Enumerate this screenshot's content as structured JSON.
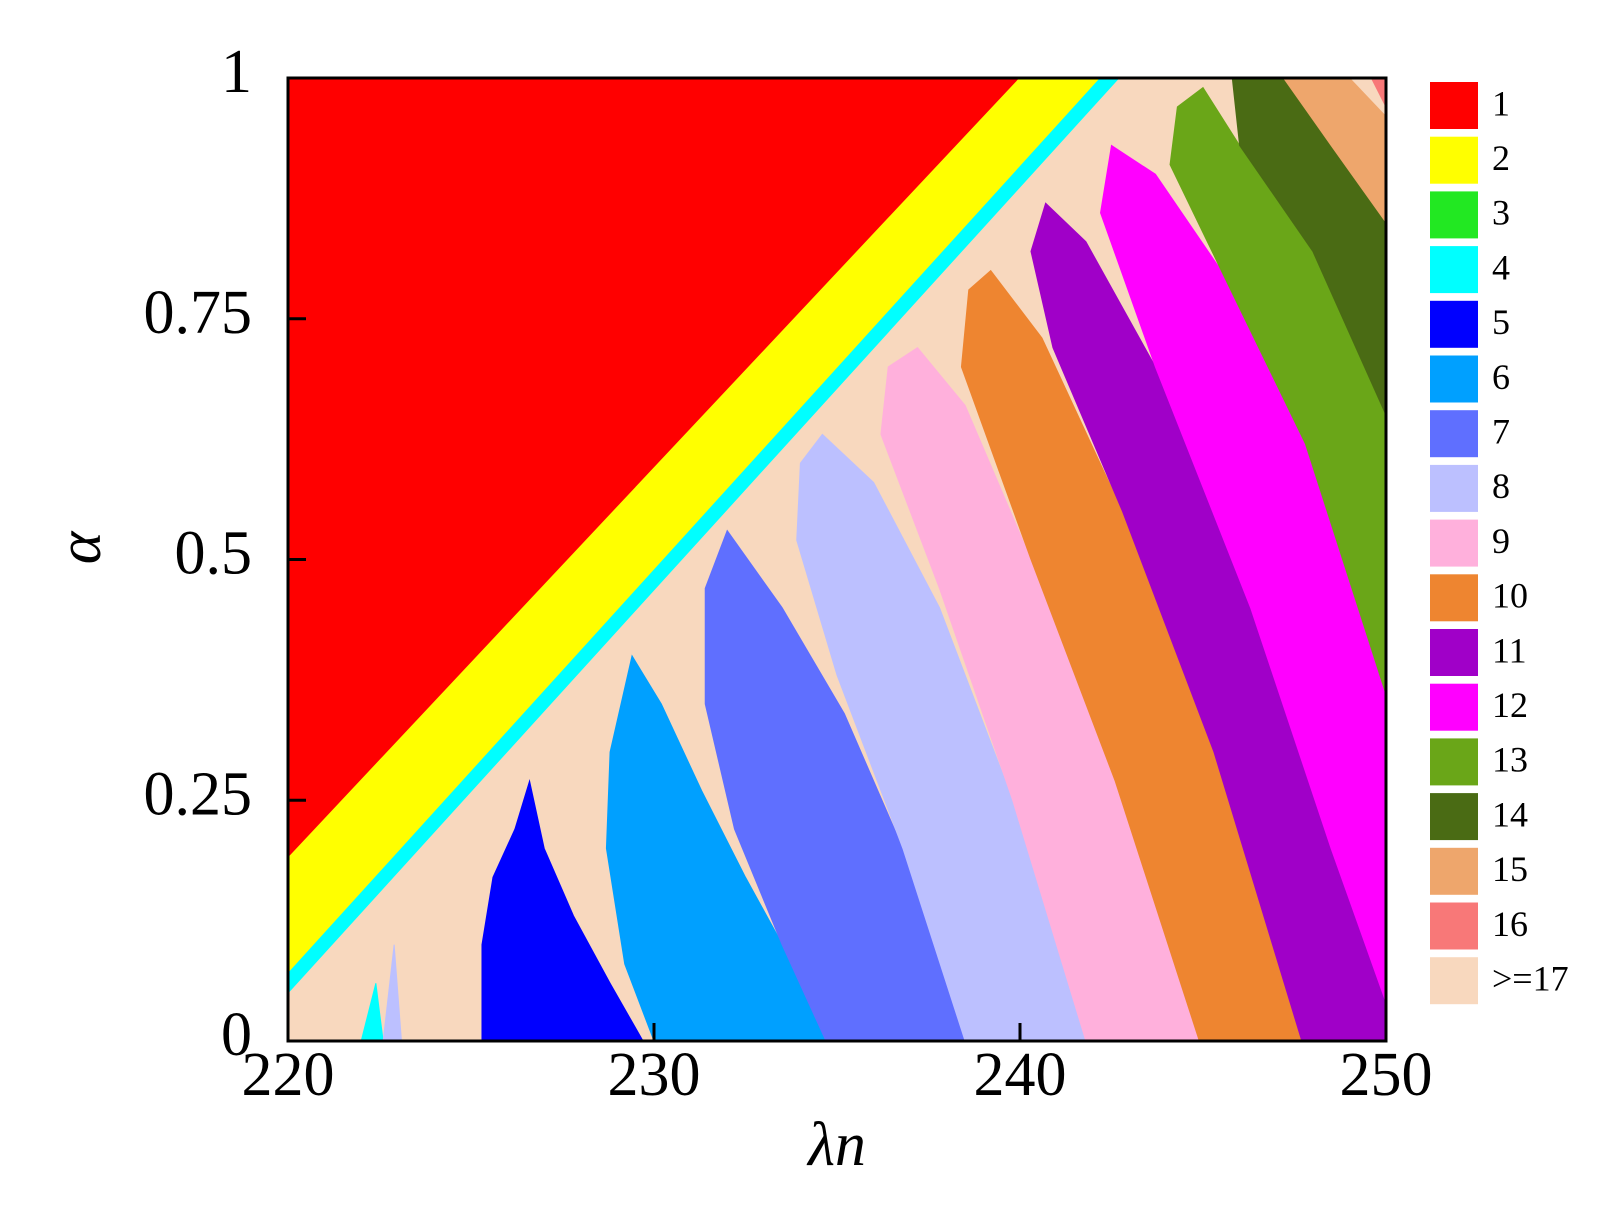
{
  "chart_data": {
    "type": "region",
    "xlabel": "λn",
    "ylabel": "α",
    "xlim": [
      220,
      250
    ],
    "ylim": [
      0,
      1
    ],
    "xticks": [
      220,
      230,
      240,
      250
    ],
    "yticks": [
      0,
      0.25,
      0.5,
      0.75,
      1
    ],
    "series": [
      {
        "name": ">=17",
        "color": "#f8d8be",
        "polygons": [
          [
            [
              220,
              0
            ],
            [
              250,
              0
            ],
            [
              250,
              1
            ],
            [
              220,
              1
            ]
          ]
        ]
      },
      {
        "name": "1",
        "color": "#ff0000",
        "polygons": [
          [
            [
              220,
              0.19
            ],
            [
              220,
              1
            ],
            [
              240,
              1
            ]
          ]
        ]
      },
      {
        "name": "2",
        "color": "#ffff00",
        "polygons": [
          [
            [
              220,
              0.19
            ],
            [
              240,
              1
            ],
            [
              242.2,
              1
            ],
            [
              220,
              0.07
            ]
          ]
        ]
      },
      {
        "name": "3",
        "color": "#22e822",
        "polygons": []
      },
      {
        "name": "4",
        "color": "#00ffff",
        "polygons": [
          [
            [
              220,
              0.07
            ],
            [
              242.2,
              1
            ],
            [
              242.7,
              1
            ],
            [
              220,
              0.05
            ]
          ],
          [
            [
              222,
              0
            ],
            [
              222.4,
              0.06
            ],
            [
              222.6,
              0
            ]
          ]
        ]
      },
      {
        "name": "5",
        "color": "#0000ff",
        "polygons": [
          [
            [
              225.3,
              0
            ],
            [
              225.3,
              0.1
            ],
            [
              225.6,
              0.17
            ],
            [
              226.2,
              0.22
            ],
            [
              226.6,
              0.27
            ],
            [
              227,
              0.2
            ],
            [
              227.8,
              0.13
            ],
            [
              228.8,
              0.06
            ],
            [
              229.7,
              0
            ]
          ]
        ]
      },
      {
        "name": "6",
        "color": "#00a0ff",
        "polygons": [
          [
            [
              230,
              0
            ],
            [
              229.2,
              0.08
            ],
            [
              228.7,
              0.2
            ],
            [
              228.8,
              0.3
            ],
            [
              229.4,
              0.4
            ],
            [
              230.2,
              0.35
            ],
            [
              231.3,
              0.26
            ],
            [
              232.5,
              0.17
            ],
            [
              233.8,
              0.08
            ],
            [
              234.7,
              0
            ]
          ]
        ]
      },
      {
        "name": "7",
        "color": "#5f6fff",
        "polygons": [
          [
            [
              234.7,
              0
            ],
            [
              233.5,
              0.1
            ],
            [
              232.2,
              0.22
            ],
            [
              231.4,
              0.35
            ],
            [
              231.4,
              0.47
            ],
            [
              232,
              0.53
            ],
            [
              233.5,
              0.45
            ],
            [
              235.2,
              0.34
            ],
            [
              236.8,
              0.2
            ],
            [
              238.5,
              0
            ]
          ]
        ]
      },
      {
        "name": "8",
        "color": "#bcc0ff",
        "polygons": [
          [
            [
              238.5,
              0
            ],
            [
              236.8,
              0.2
            ],
            [
              235,
              0.38
            ],
            [
              233.9,
              0.52
            ],
            [
              234,
              0.6
            ],
            [
              234.6,
              0.63
            ],
            [
              236,
              0.58
            ],
            [
              237.8,
              0.45
            ],
            [
              239.8,
              0.25
            ],
            [
              241.8,
              0
            ]
          ],
          [
            [
              222.6,
              0
            ],
            [
              222.9,
              0.1
            ],
            [
              223.1,
              0
            ]
          ]
        ]
      },
      {
        "name": "9",
        "color": "#ffb0dc",
        "polygons": [
          [
            [
              241.8,
              0
            ],
            [
              239.8,
              0.25
            ],
            [
              237.8,
              0.47
            ],
            [
              236.2,
              0.63
            ],
            [
              236.4,
              0.7
            ],
            [
              237.2,
              0.72
            ],
            [
              238.5,
              0.66
            ],
            [
              240.3,
              0.5
            ],
            [
              242.6,
              0.27
            ],
            [
              244.9,
              0
            ]
          ]
        ]
      },
      {
        "name": "10",
        "color": "#ee8530",
        "polygons": [
          [
            [
              244.9,
              0
            ],
            [
              242.6,
              0.27
            ],
            [
              240.3,
              0.5
            ],
            [
              238.4,
              0.7
            ],
            [
              238.6,
              0.78
            ],
            [
              239.2,
              0.8
            ],
            [
              240.6,
              0.73
            ],
            [
              242.8,
              0.55
            ],
            [
              245.3,
              0.3
            ],
            [
              247.7,
              0
            ]
          ]
        ]
      },
      {
        "name": "11",
        "color": "#a000c8",
        "polygons": [
          [
            [
              247.7,
              0
            ],
            [
              245.3,
              0.3
            ],
            [
              242.8,
              0.55
            ],
            [
              240.9,
              0.72
            ],
            [
              240.3,
              0.82
            ],
            [
              240.7,
              0.87
            ],
            [
              241.8,
              0.83
            ],
            [
              243.7,
              0.7
            ],
            [
              246.3,
              0.45
            ],
            [
              248.5,
              0.2
            ],
            [
              250,
              0.04
            ],
            [
              250,
              0
            ]
          ]
        ]
      },
      {
        "name": "12",
        "color": "#ff00ff",
        "polygons": [
          [
            [
              250,
              0.04
            ],
            [
              248.5,
              0.2
            ],
            [
              246.3,
              0.45
            ],
            [
              243.7,
              0.7
            ],
            [
              242.2,
              0.86
            ],
            [
              242.5,
              0.93
            ],
            [
              243.7,
              0.9
            ],
            [
              245.5,
              0.8
            ],
            [
              247.8,
              0.62
            ],
            [
              250,
              0.36
            ]
          ]
        ]
      },
      {
        "name": "13",
        "color": "#6aa618",
        "polygons": [
          [
            [
              250,
              0.36
            ],
            [
              247.8,
              0.62
            ],
            [
              245.5,
              0.8
            ],
            [
              244.1,
              0.91
            ],
            [
              244.3,
              0.97
            ],
            [
              245,
              0.99
            ],
            [
              246,
              0.93
            ],
            [
              248,
              0.82
            ],
            [
              250,
              0.65
            ]
          ]
        ]
      },
      {
        "name": "14",
        "color": "#4a6b14",
        "polygons": [
          [
            [
              250,
              0.65
            ],
            [
              248,
              0.82
            ],
            [
              246,
              0.93
            ],
            [
              245.8,
              1
            ],
            [
              247.2,
              1
            ],
            [
              248.5,
              0.93
            ],
            [
              250,
              0.85
            ]
          ]
        ]
      },
      {
        "name": "15",
        "color": "#eea66c",
        "polygons": [
          [
            [
              250,
              0.85
            ],
            [
              248.5,
              0.93
            ],
            [
              247.2,
              1
            ],
            [
              249,
              1
            ],
            [
              250,
              0.96
            ]
          ]
        ]
      },
      {
        "name": "16",
        "color": "#f87878",
        "polygons": [
          [
            [
              249.6,
              1
            ],
            [
              250,
              1
            ],
            [
              250,
              0.97
            ]
          ]
        ]
      }
    ],
    "legend_order": [
      ">=17"
    ]
  }
}
